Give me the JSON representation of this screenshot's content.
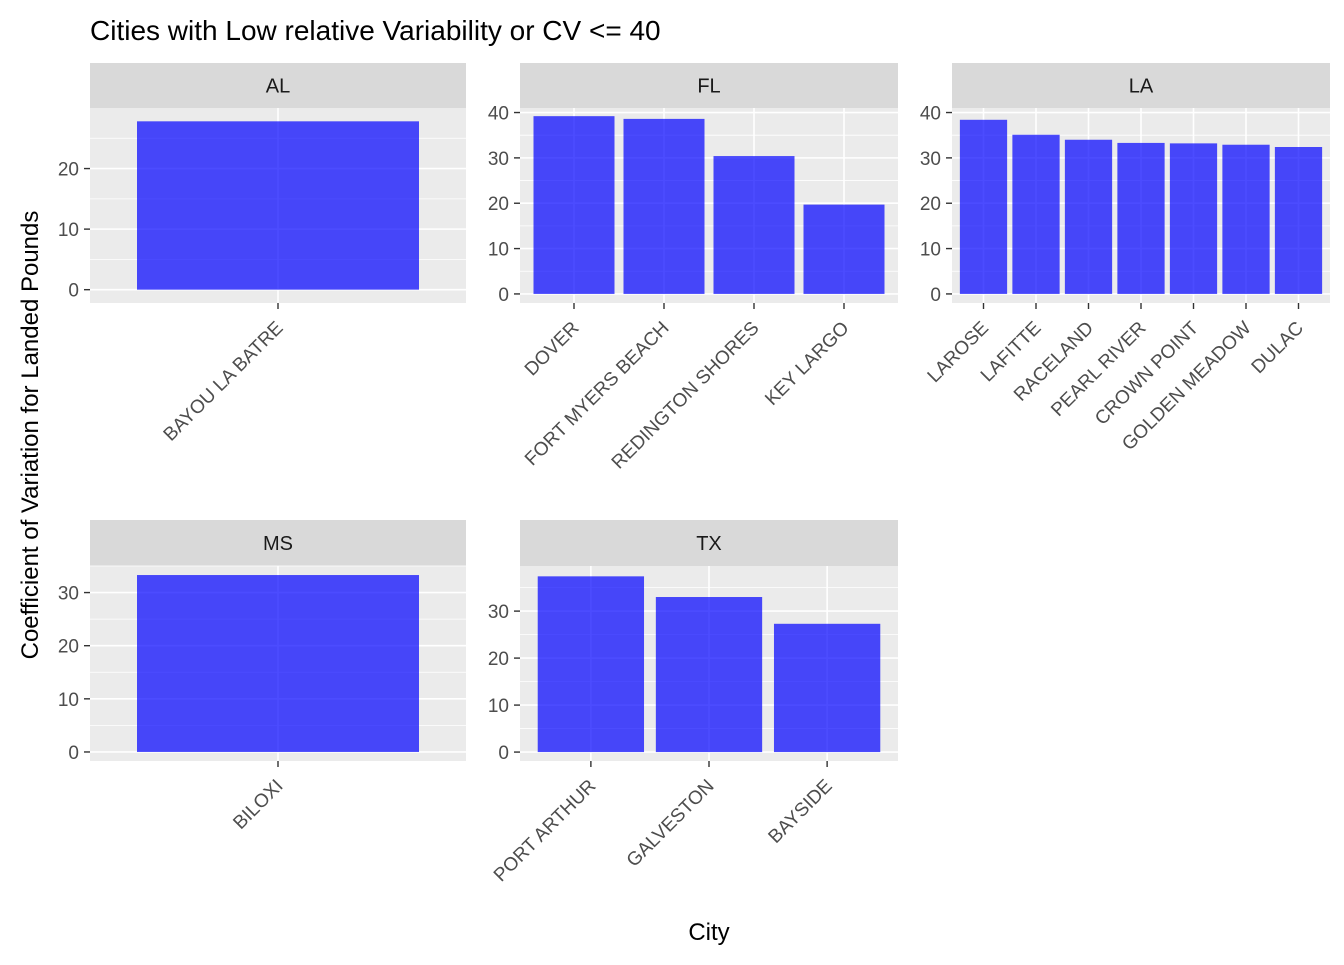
{
  "title": "Cities with Low relative Variability or CV <= 40",
  "xlabel": "City",
  "ylabel": "Coefficient of Variation for Landed Pounds",
  "colors": {
    "bar": "#0000FF",
    "panel_bg": "#EBEBEB",
    "grid": "#FFFFFF",
    "strip_bg": "#D9D9D9",
    "tick_text": "#4D4D4D",
    "text": "#1A1A1A"
  },
  "chart_data": [
    {
      "type": "bar",
      "facet": "AL",
      "categories": [
        "BAYOU LA BATRE"
      ],
      "values": [
        27.8
      ],
      "ylim": [
        -2.2,
        30.0
      ],
      "yticks": [
        0,
        10,
        20
      ]
    },
    {
      "type": "bar",
      "facet": "FL",
      "categories": [
        "DOVER",
        "FORT MYERS BEACH",
        "REDINGTON SHORES",
        "KEY LARGO"
      ],
      "values": [
        39.2,
        38.6,
        30.4,
        19.7
      ],
      "ylim": [
        -2.0,
        41.0
      ],
      "yticks": [
        0,
        10,
        20,
        30,
        40
      ]
    },
    {
      "type": "bar",
      "facet": "LA",
      "categories": [
        "LAROSE",
        "LAFITTE",
        "RACELAND",
        "PEARL RIVER",
        "CROWN POINT",
        "GOLDEN MEADOW",
        "DULAC"
      ],
      "values": [
        38.4,
        35.1,
        34.0,
        33.3,
        33.2,
        32.9,
        32.4
      ],
      "ylim": [
        -2.0,
        41.0
      ],
      "yticks": [
        0,
        10,
        20,
        30,
        40
      ]
    },
    {
      "type": "bar",
      "facet": "MS",
      "categories": [
        "BILOXI"
      ],
      "values": [
        33.3
      ],
      "ylim": [
        -1.7,
        35.0
      ],
      "yticks": [
        0,
        10,
        20,
        30
      ]
    },
    {
      "type": "bar",
      "facet": "TX",
      "categories": [
        "PORT ARTHUR",
        "GALVESTON",
        "BAYSIDE"
      ],
      "values": [
        37.4,
        33.0,
        27.3
      ],
      "ylim": [
        -1.9,
        39.6
      ],
      "yticks": [
        0,
        10,
        20,
        30
      ]
    }
  ]
}
